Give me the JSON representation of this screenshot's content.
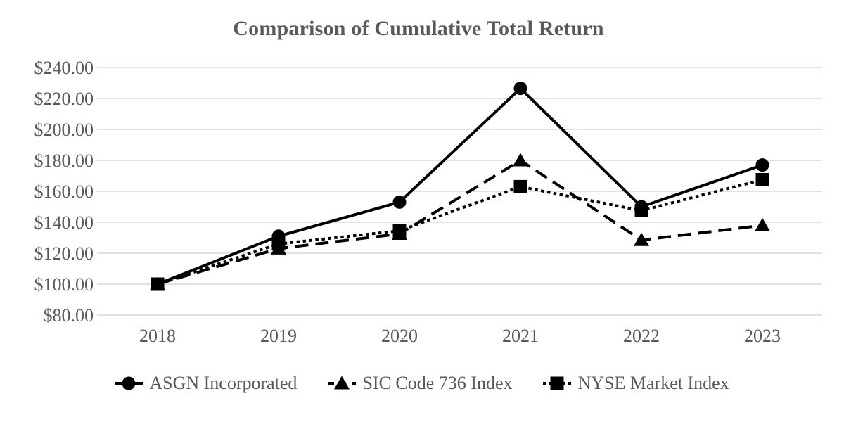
{
  "chart": {
    "title": "Comparison of Cumulative Total Return"
  },
  "chart_data": {
    "type": "line",
    "title": "Comparison of Cumulative Total Return",
    "categories": [
      "2018",
      "2019",
      "2020",
      "2021",
      "2022",
      "2023"
    ],
    "series": [
      {
        "name": "ASGN Incorporated",
        "marker": "circle",
        "line_style": "solid",
        "color": "#000000",
        "values": [
          100.0,
          131.0,
          153.0,
          226.5,
          150.0,
          177.0
        ]
      },
      {
        "name": "SIC Code 736 Index",
        "marker": "triangle",
        "line_style": "dashed",
        "color": "#000000",
        "values": [
          100.0,
          123.0,
          132.5,
          180.0,
          128.5,
          138.0
        ]
      },
      {
        "name": "NYSE Market Index",
        "marker": "square",
        "line_style": "dotted",
        "color": "#000000",
        "values": [
          100.0,
          126.0,
          134.5,
          163.0,
          147.5,
          167.5
        ]
      }
    ],
    "ylim": [
      80,
      240
    ],
    "ytick_step": 20,
    "ytick_labels": [
      "$240.00",
      "$220.00",
      "$200.00",
      "$180.00",
      "$160.00",
      "$140.00",
      "$120.00",
      "$100.00",
      "$80.00"
    ],
    "xtick_labels": [
      "2018",
      "2019",
      "2020",
      "2021",
      "2022",
      "2023"
    ],
    "grid": true,
    "legend_position": "bottom",
    "colors": {
      "text": "#595959",
      "gridline": "#d9d9d9",
      "background": "#ffffff",
      "series": "#000000"
    }
  }
}
